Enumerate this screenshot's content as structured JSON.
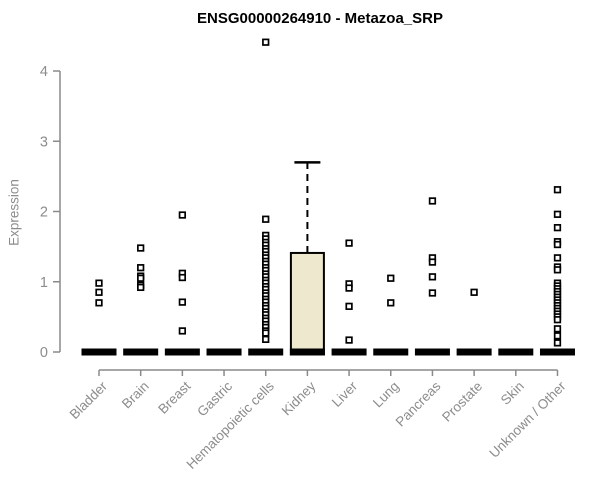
{
  "chart_data": {
    "type": "boxplot",
    "title": "ENSG00000264910 - Metazoa_SRP",
    "ylabel": "Expression",
    "xlabel": "",
    "ylim": [
      0,
      4
    ],
    "yticks": [
      0,
      1,
      2,
      3,
      4
    ],
    "grid": "off",
    "legend": "none",
    "colors": {
      "box_fill": "#EDE8CE",
      "box_border": "#000000",
      "point_color": "#000000",
      "axis_color": "#8A8A8A",
      "axis_text_color": "#8C8C8C",
      "title_color": "#000000"
    },
    "categories": [
      "Bladder",
      "Brain",
      "Breast",
      "Gastric",
      "Hematopoietic cells",
      "Kidney",
      "Liver",
      "Lung",
      "Pancreas",
      "Prostate",
      "Skin",
      "Unknown / Other"
    ],
    "boxes": [
      {
        "category": "Bladder",
        "q1": 0,
        "median": 0,
        "q3": 0,
        "whisker_low": 0,
        "whisker_high": 0,
        "outliers": [
          0.98,
          0.85,
          0.7
        ]
      },
      {
        "category": "Brain",
        "q1": 0,
        "median": 0,
        "q3": 0,
        "whisker_low": 0,
        "whisker_high": 0,
        "outliers": [
          1.48,
          1.2,
          1.08,
          1.05,
          0.95,
          0.92
        ]
      },
      {
        "category": "Breast",
        "q1": 0,
        "median": 0,
        "q3": 0,
        "whisker_low": 0,
        "whisker_high": 0,
        "outliers": [
          1.95,
          1.12,
          1.06,
          0.71,
          0.3
        ]
      },
      {
        "category": "Gastric",
        "q1": 0,
        "median": 0,
        "q3": 0,
        "whisker_low": 0,
        "whisker_high": 0,
        "outliers": []
      },
      {
        "category": "Hematopoietic cells",
        "q1": 0,
        "median": 0,
        "q3": 0,
        "whisker_low": 0,
        "whisker_high": 0,
        "outliers": [
          4.41,
          1.89,
          1.66,
          1.61,
          1.56,
          1.52,
          1.47,
          1.43,
          1.38,
          1.34,
          1.29,
          1.25,
          1.2,
          1.16,
          1.11,
          1.07,
          1.02,
          0.98,
          0.93,
          0.89,
          0.84,
          0.8,
          0.75,
          0.71,
          0.66,
          0.62,
          0.57,
          0.53,
          0.48,
          0.44,
          0.39,
          0.35,
          0.3,
          0.27,
          0.18
        ]
      },
      {
        "category": "Kidney",
        "q1": 0,
        "median": 0,
        "q3": 1.41,
        "whisker_low": 0,
        "whisker_high": 2.7,
        "outliers": []
      },
      {
        "category": "Liver",
        "q1": 0,
        "median": 0,
        "q3": 0,
        "whisker_low": 0,
        "whisker_high": 0,
        "outliers": [
          1.55,
          0.97,
          0.91,
          0.65,
          0.17
        ]
      },
      {
        "category": "Lung",
        "q1": 0,
        "median": 0,
        "q3": 0,
        "whisker_low": 0,
        "whisker_high": 0,
        "outliers": [
          1.05,
          0.7
        ]
      },
      {
        "category": "Pancreas",
        "q1": 0,
        "median": 0,
        "q3": 0,
        "whisker_low": 0,
        "whisker_high": 0,
        "outliers": [
          2.15,
          1.34,
          1.28,
          1.07,
          0.84
        ]
      },
      {
        "category": "Prostate",
        "q1": 0,
        "median": 0,
        "q3": 0,
        "whisker_low": 0,
        "whisker_high": 0,
        "outliers": [
          0.85
        ]
      },
      {
        "category": "Skin",
        "q1": 0,
        "median": 0,
        "q3": 0,
        "whisker_low": 0,
        "whisker_high": 0,
        "outliers": []
      },
      {
        "category": "Unknown / Other",
        "q1": 0,
        "median": 0,
        "q3": 0,
        "whisker_low": 0,
        "whisker_high": 0,
        "outliers": [
          2.31,
          1.96,
          1.77,
          1.57,
          1.53,
          1.34,
          1.21,
          1.17,
          0.98,
          0.94,
          0.9,
          0.86,
          0.82,
          0.78,
          0.74,
          0.7,
          0.66,
          0.62,
          0.58,
          0.54,
          0.5,
          0.46,
          0.33,
          0.23,
          0.13
        ]
      }
    ]
  }
}
